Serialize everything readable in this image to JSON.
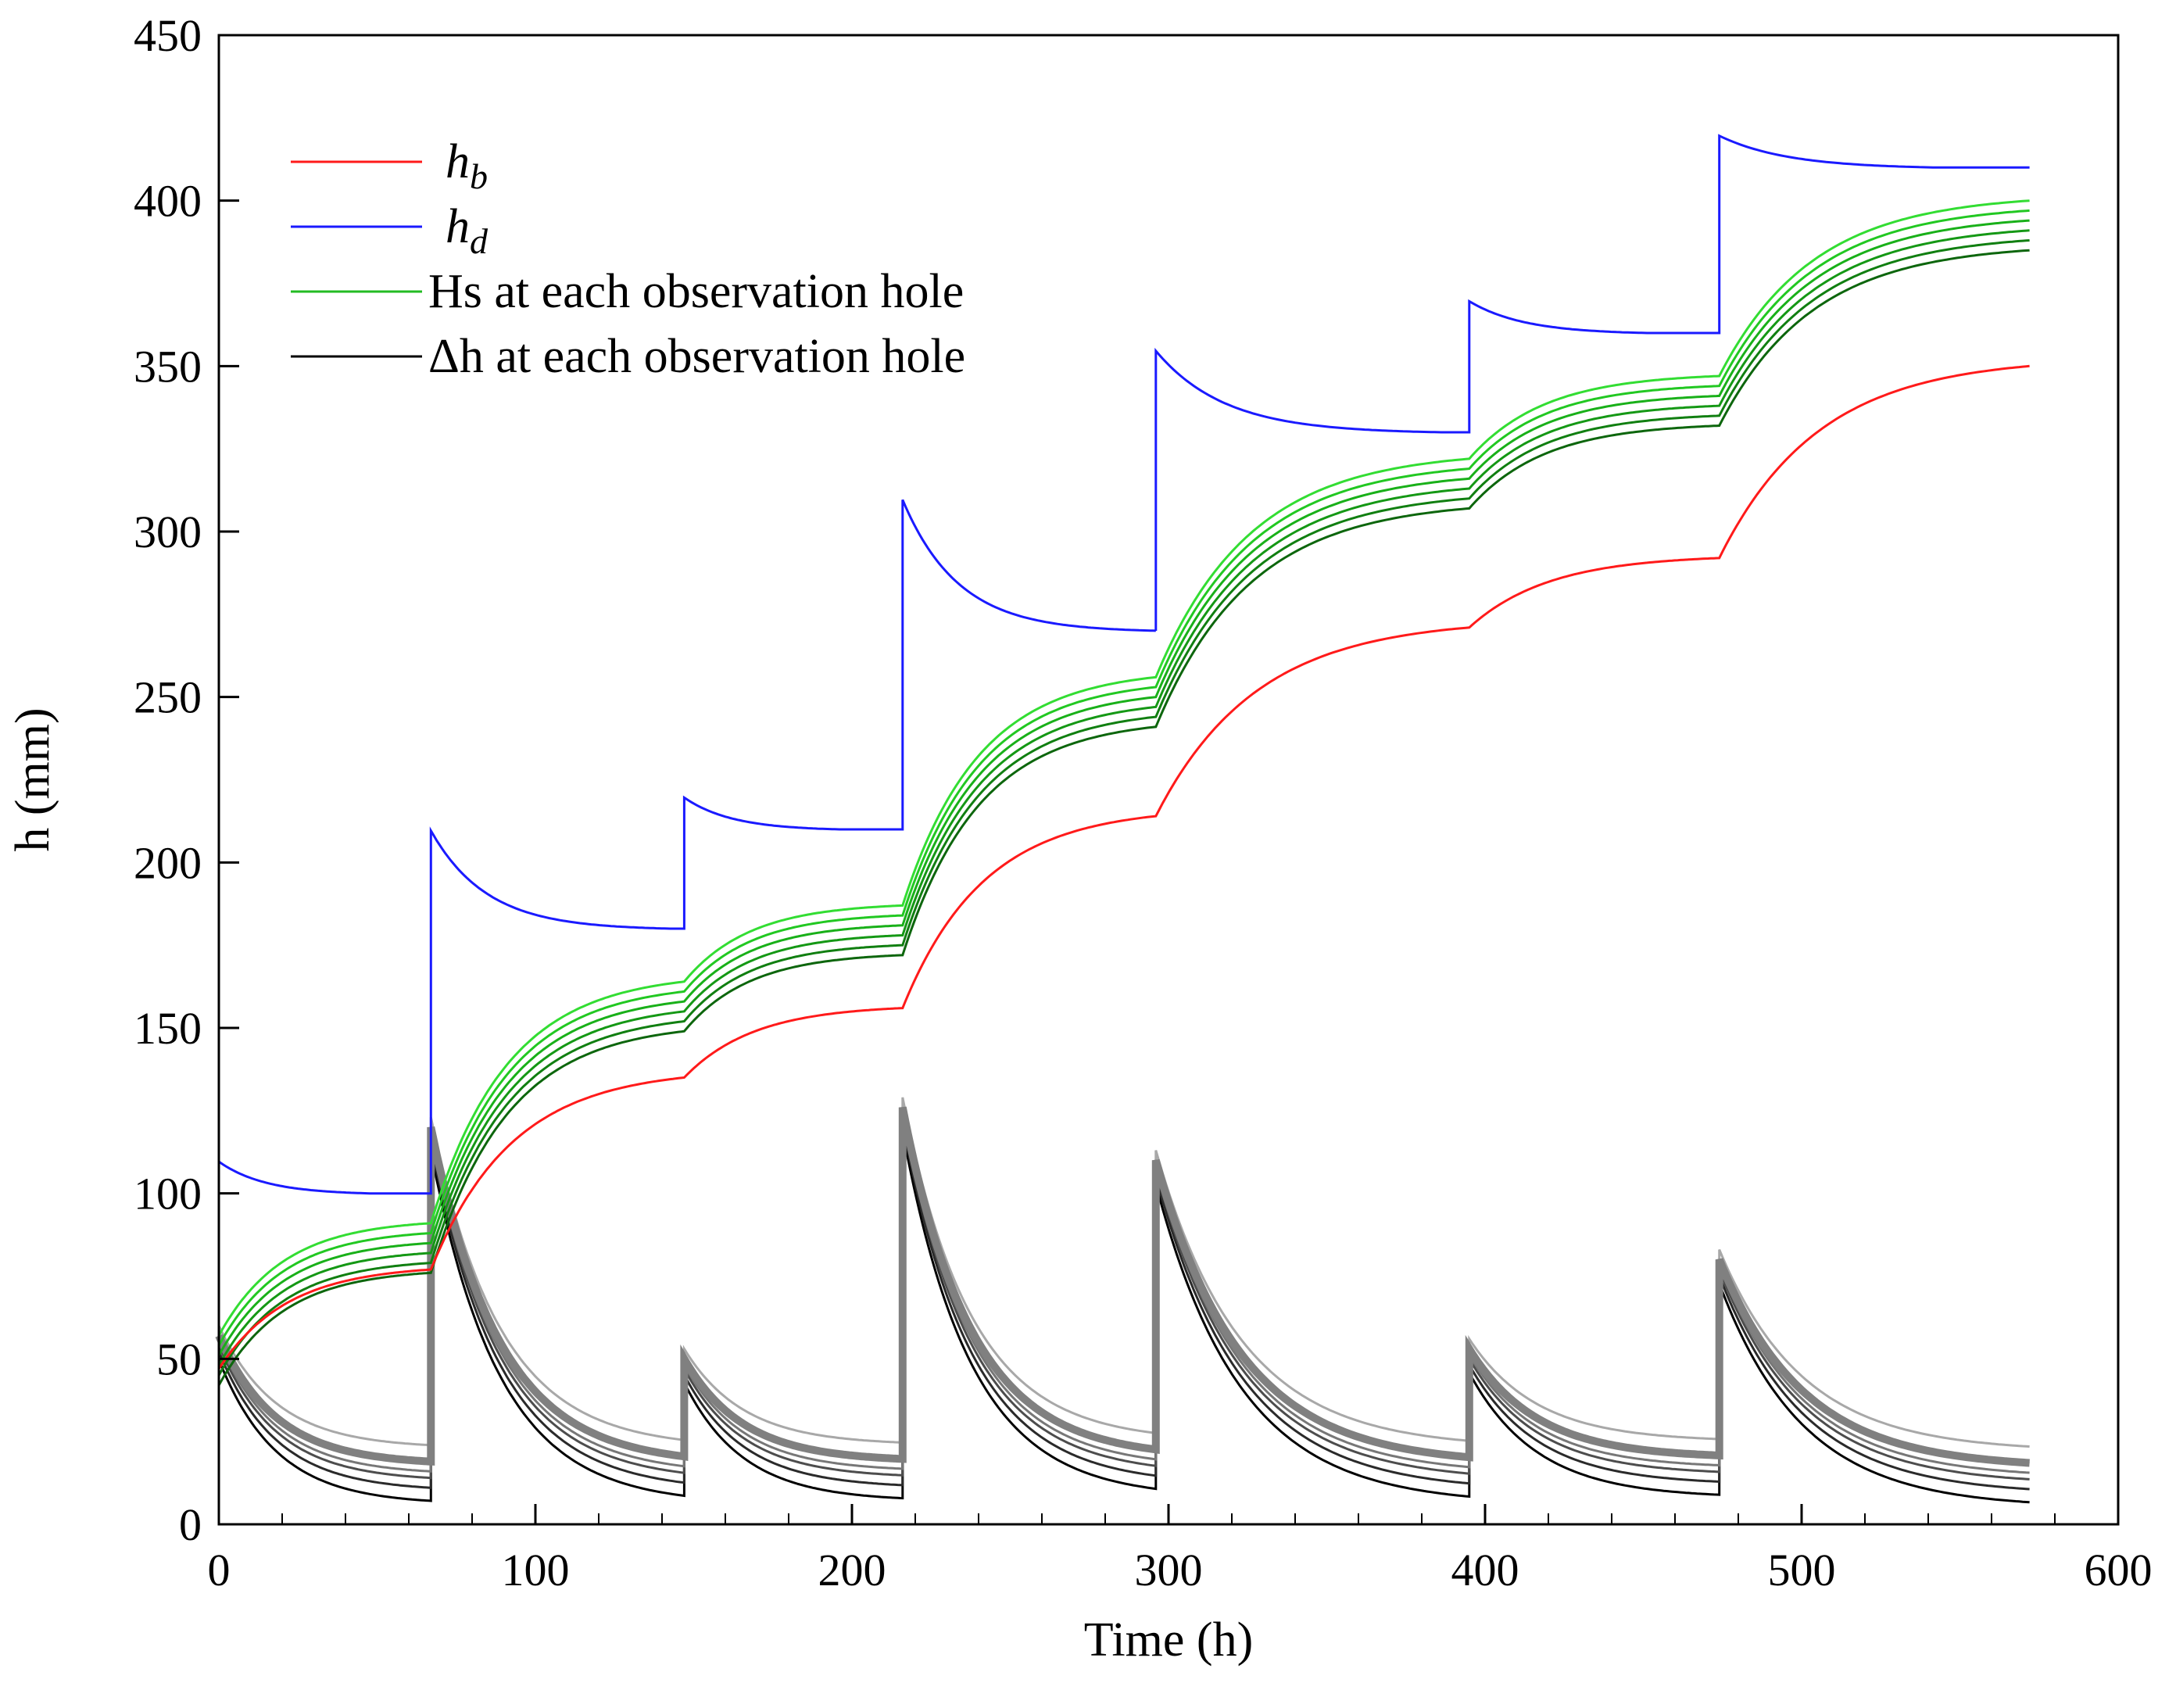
{
  "chart_data": {
    "type": "line",
    "xlabel": "Time (h)",
    "ylabel": "h (mm)",
    "xlim": [
      0,
      600
    ],
    "ylim": [
      0,
      450
    ],
    "xticks": [
      0,
      100,
      200,
      300,
      400,
      500,
      600
    ],
    "yticks": [
      0,
      50,
      100,
      150,
      200,
      250,
      300,
      350,
      400,
      450
    ],
    "xtick_labels": [
      "0",
      "100",
      "200",
      "300",
      "400",
      "500",
      "600"
    ],
    "ytick_labels": [
      "0",
      "50",
      "100",
      "150",
      "200",
      "250",
      "300",
      "350",
      "400",
      "450"
    ],
    "x_minor_step": 20,
    "grid": false,
    "legend": {
      "position": "top-left",
      "entries": [
        {
          "main": "h",
          "sub": "b",
          "color": "#ff1a1a",
          "italic": true
        },
        {
          "main": "h",
          "sub": "d",
          "color": "#1a1aff",
          "italic": true
        },
        {
          "main": "Hs at each observation hole",
          "sub": "",
          "color": "#22bb22",
          "italic": false
        },
        {
          "main": "Δh at each observation hole",
          "sub": "",
          "color": "#000000",
          "italic": false
        }
      ]
    },
    "colors": {
      "hb": "#ff1a1a",
      "hd": "#1a1aff",
      "hs": [
        "#33dd33",
        "#22c822",
        "#19b019",
        "#159815",
        "#117f11",
        "#0d660d"
      ],
      "dh": [
        "#000000",
        "#2a2a2a",
        "#4d4d4d",
        "#777777",
        "#8c8c8c",
        "#a8a8a8"
      ]
    },
    "stages": [
      {
        "start": 0,
        "end": 67,
        "hd_peak": 110,
        "hd_steady": 100,
        "hb_start": 47,
        "hb_end": 77,
        "hs_start": 57,
        "hs_end": 91,
        "dh_peak": 57,
        "dh_end": 18
      },
      {
        "start": 67,
        "end": 147,
        "hd_peak": 210,
        "hd_steady": 180,
        "hb_start": 77,
        "hb_end": 135,
        "hs_start": 91,
        "hs_end": 164,
        "dh_peak": 120,
        "dh_end": 18
      },
      {
        "start": 147,
        "end": 216,
        "hd_peak": 220,
        "hd_steady": 210,
        "hb_start": 135,
        "hb_end": 156,
        "hs_start": 164,
        "hs_end": 187,
        "dh_peak": 50,
        "dh_end": 19
      },
      {
        "start": 216,
        "end": 296,
        "hd_peak": 310,
        "hd_steady": 270,
        "hb_start": 156,
        "hb_end": 214,
        "hs_start": 187,
        "hs_end": 256,
        "dh_peak": 126,
        "dh_end": 20
      },
      {
        "start": 296,
        "end": 395,
        "hd_peak": 355,
        "hd_steady": 330,
        "hb_start": 214,
        "hb_end": 271,
        "hs_start": 256,
        "hs_end": 322,
        "dh_peak": 110,
        "dh_end": 18
      },
      {
        "start": 395,
        "end": 474,
        "hd_peak": 370,
        "hd_steady": 360,
        "hb_start": 271,
        "hb_end": 292,
        "hs_start": 322,
        "hs_end": 347,
        "dh_peak": 53,
        "dh_end": 20
      },
      {
        "start": 474,
        "end": 572,
        "hd_peak": 420,
        "hd_steady": 410,
        "hb_start": 292,
        "hb_end": 350,
        "hs_start": 347,
        "hs_end": 400,
        "dh_peak": 80,
        "dh_end": 17
      }
    ],
    "hs_offsets": [
      0,
      3,
      6,
      9,
      12,
      15
    ],
    "dh_offsets": [
      -12,
      -8,
      -5,
      -3,
      0,
      5
    ],
    "series": [
      {
        "name": "hb",
        "label": "h_b",
        "values_at_stage_ends": [
          77,
          135,
          156,
          214,
          271,
          292,
          350
        ]
      },
      {
        "name": "hd",
        "label": "h_d",
        "steady_values": [
          100,
          180,
          210,
          270,
          330,
          360,
          410
        ]
      },
      {
        "name": "Hs",
        "label": "Hs at each observation hole",
        "top_curve_stage_end_values": [
          91,
          164,
          187,
          256,
          322,
          347,
          400
        ]
      },
      {
        "name": "dh",
        "label": "Δh at each observation hole",
        "peak_values": [
          57,
          120,
          50,
          126,
          110,
          53,
          80
        ]
      }
    ]
  }
}
